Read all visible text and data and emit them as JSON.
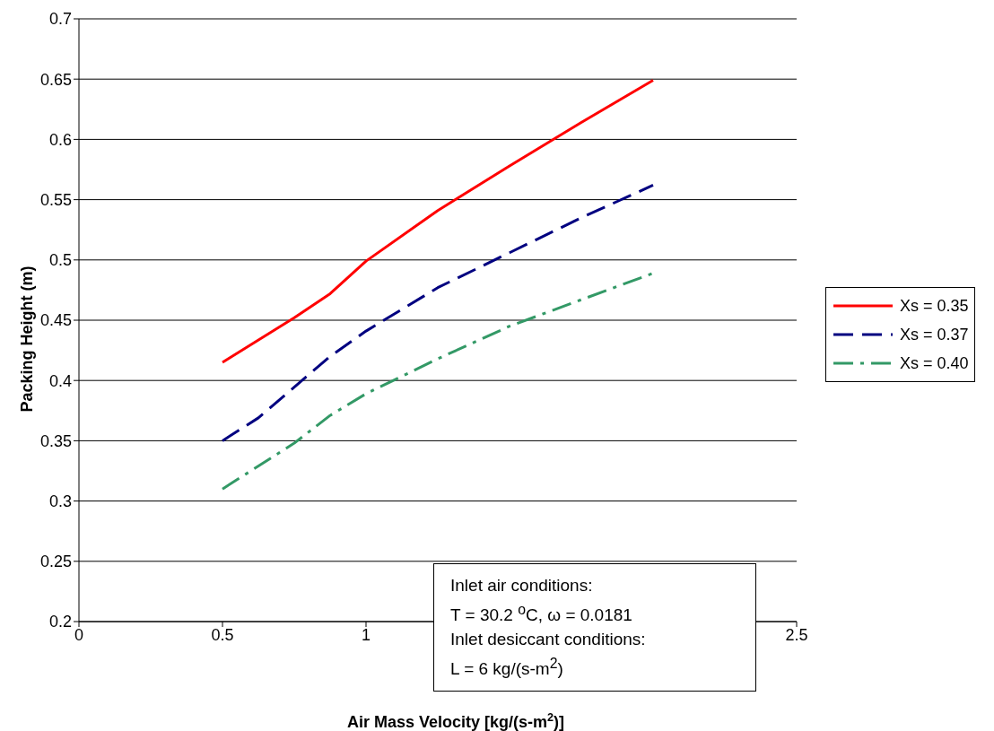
{
  "chart_data": {
    "type": "line",
    "xlabel": "Air Mass Velocity [kg/(s-m$^{2}$)]",
    "ylabel": "Packing Height (m)",
    "xlim": [
      0,
      2.5
    ],
    "xticks": [
      0,
      0.5,
      1,
      2.5
    ],
    "ylim": [
      0.2,
      0.7
    ],
    "yticks": [
      0.2,
      0.25,
      0.3,
      0.35,
      0.4,
      0.45,
      0.5,
      0.55,
      0.6,
      0.65,
      0.7
    ],
    "grid": "y",
    "legend": "right",
    "marker": "none",
    "series": [
      {
        "name": "Xs = 0.35",
        "color": "#ff0000",
        "line_style": "solid",
        "x": [
          0.5,
          0.75,
          0.875,
          1,
          1.25,
          1.5,
          1.75,
          2
        ],
        "values": [
          0.415,
          0.452,
          0.472,
          0.499,
          0.541,
          0.578,
          0.614,
          0.649
        ]
      },
      {
        "name": "Xs = 0.37",
        "color": "#000080",
        "line_style": "dashed",
        "x": [
          0.5,
          0.625,
          0.875,
          1,
          1.25,
          1.5,
          1.75,
          2
        ],
        "values": [
          0.35,
          0.369,
          0.42,
          0.441,
          0.477,
          0.506,
          0.535,
          0.562
        ]
      },
      {
        "name": "Xs = 0.40",
        "color": "#339966",
        "line_style": "dashdot",
        "x": [
          0.5,
          0.75,
          0.875,
          1,
          1.25,
          1.5,
          1.75,
          2
        ],
        "values": [
          0.31,
          0.348,
          0.371,
          0.389,
          0.418,
          0.445,
          0.467,
          0.489
        ]
      }
    ],
    "annotations": [
      "Inlet air conditions:",
      "T = 30.2 $^{o}$C, ω = 0.0181",
      "Inlet desiccant conditions:",
      "L = 6 kg/(s-m$^{2}$)"
    ]
  }
}
